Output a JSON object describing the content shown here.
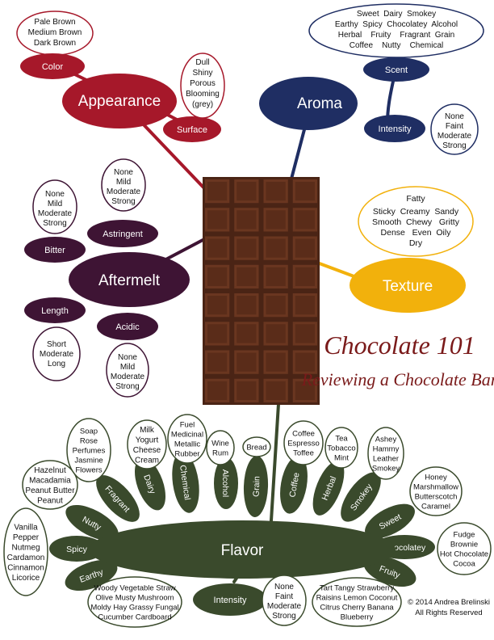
{
  "title": "Chocolate 101",
  "subtitle": "Reviewing a Chocolate Bar",
  "copyright": [
    "© 2014 Andrea Brelinski",
    "All Rights Reserved"
  ],
  "colors": {
    "appearance": "#a6182a",
    "aroma": "#1f2e63",
    "texture": "#f2b10c",
    "aftermelt": "#3e1434",
    "flavor": "#3a4a2c",
    "chocolate": "#5a2e1c"
  },
  "appearance": {
    "main": "Appearance",
    "color": "Color",
    "color_values": [
      "Pale Brown",
      "Medium Brown",
      "Dark Brown"
    ],
    "surface": "Surface",
    "surface_values": [
      "Dull",
      "Shiny",
      "Porous",
      "Blooming",
      "(grey)"
    ]
  },
  "aroma": {
    "main": "Aroma",
    "scent": "Scent",
    "scent_values": [
      "Sweet  Dairy  Smokey",
      "Earthy  Spicy  Chocolatey  Alcohol",
      "Herbal    Fruity    Fragrant  Grain",
      "Coffee    Nutty    Chemical"
    ],
    "intensity": "Intensity",
    "intensity_values": [
      "None",
      "Faint",
      "Moderate",
      "Strong"
    ]
  },
  "texture": {
    "main": "Texture",
    "values": [
      "Fatty",
      "Sticky  Creamy  Sandy",
      "Smooth  Chewy   Gritty",
      "Dense   Even  Oily",
      "Dry"
    ]
  },
  "aftermelt": {
    "main": "Aftermelt",
    "bitter": "Bitter",
    "bitter_values": [
      "None",
      "Mild",
      "Moderate",
      "Strong"
    ],
    "astringent": "Astringent",
    "astringent_values": [
      "None",
      "Mild",
      "Moderate",
      "Strong"
    ],
    "length": "Length",
    "length_values": [
      "Short",
      "Moderate",
      "Long"
    ],
    "acidic": "Acidic",
    "acidic_values": [
      "None",
      "Mild",
      "Moderate",
      "Strong"
    ]
  },
  "flavor": {
    "main": "Flavor",
    "intensity": "Intensity",
    "intensity_values": [
      "None",
      "Faint",
      "Moderate",
      "Strong"
    ],
    "petals": [
      {
        "label": "Earthy",
        "values": [
          "Woody Vegetable Straw",
          "Olive Musty Mushroom",
          "Moldy Hay Grassy Fungal",
          "Cucumber Cardboard"
        ]
      },
      {
        "label": "Spicy",
        "values": [
          "Vanilla",
          "Pepper",
          "Nutmeg",
          "Cardamon",
          "Cinnamon",
          "Licorice"
        ]
      },
      {
        "label": "Nutty",
        "values": [
          "Hazelnut",
          "Macadamia",
          "Peanut Butter",
          "Peanut"
        ]
      },
      {
        "label": "Fragrant",
        "values": [
          "Soap",
          "Rose",
          "Perfumes",
          "Jasmine",
          "Flowers"
        ]
      },
      {
        "label": "Dairy",
        "values": [
          "Milk",
          "Yogurt",
          "Cheese",
          "Cream"
        ]
      },
      {
        "label": "Chemical",
        "values": [
          "Fuel",
          "Medicinal",
          "Metallic",
          "Rubber"
        ]
      },
      {
        "label": "Alcohol",
        "values": [
          "Wine",
          "Rum"
        ]
      },
      {
        "label": "Grain",
        "values": [
          "Bread"
        ]
      },
      {
        "label": "Coffee",
        "values": [
          "Coffee",
          "Espresso",
          "Toffee"
        ]
      },
      {
        "label": "Herbal",
        "values": [
          "Tea",
          "Tobacco",
          "Mint"
        ]
      },
      {
        "label": "Smokey",
        "values": [
          "Ashey",
          "Hammy",
          "Leather",
          "Smokey"
        ]
      },
      {
        "label": "Sweet",
        "values": [
          "Honey",
          "Marshmallow",
          "Butterscotch",
          "Caramel"
        ]
      },
      {
        "label": "Chocolatey",
        "values": [
          "Fudge",
          "Brownie",
          "Hot Chocolate",
          "Cocoa"
        ]
      },
      {
        "label": "Fruity",
        "values": [
          "Tart  Tangy  Strawberry",
          "Raisins  Lemon  Coconut",
          "Citrus  Cherry  Banana",
          "Blueberry"
        ]
      }
    ]
  }
}
